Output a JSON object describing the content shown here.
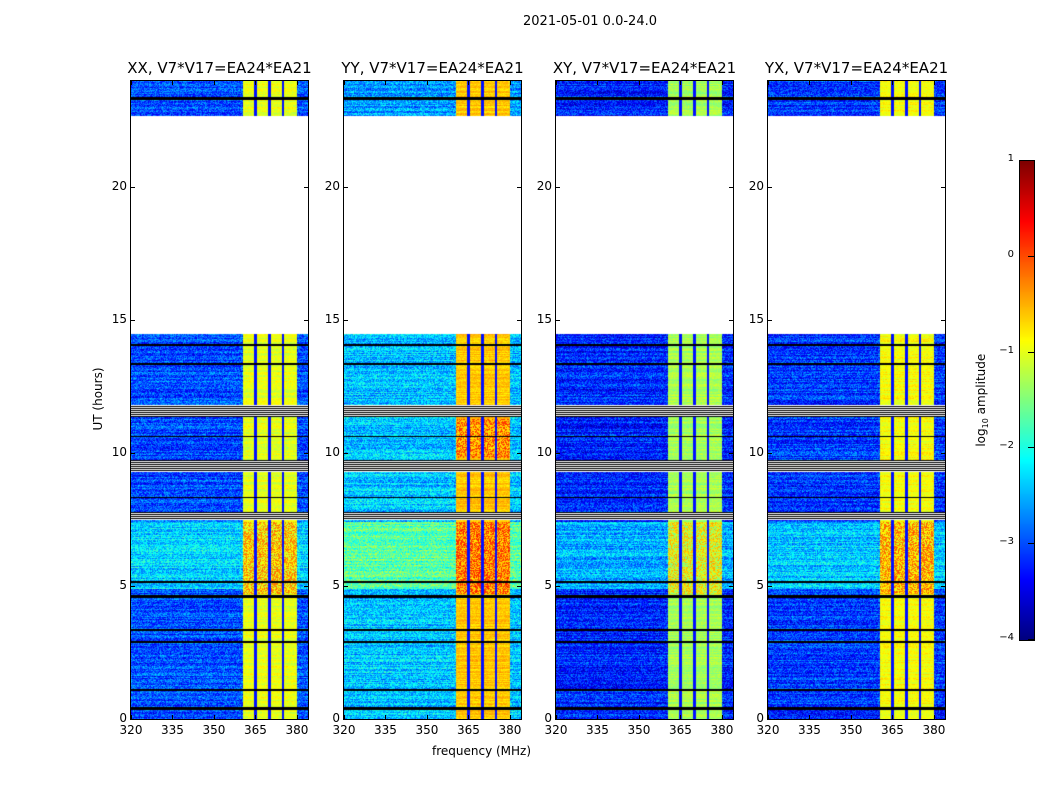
{
  "chart_data": {
    "type": "heatmap",
    "suptitle": "2021-05-01 0.0-24.0",
    "xlabel": "frequency (MHz)",
    "ylabel": "UT (hours)",
    "xlim": [
      320,
      384
    ],
    "ylim": [
      0,
      24
    ],
    "xticks": [
      "320",
      "335",
      "350",
      "365",
      "380"
    ],
    "xtick_values": [
      320,
      335,
      350,
      365,
      380
    ],
    "yticks": [
      "0",
      "5",
      "10",
      "15",
      "20"
    ],
    "ytick_values": [
      0,
      5,
      10,
      15,
      20
    ],
    "data_time_ranges_hours": [
      [
        0,
        14.5
      ],
      [
        22.7,
        24
      ]
    ],
    "bright_band_mhz": [
      360.5,
      380
    ],
    "spw_boundaries_mhz": [
      365,
      370,
      375
    ],
    "flagged_rows_hours": [
      [
        0.35,
        0.45
      ],
      [
        1.05,
        1.12
      ],
      [
        2.85,
        2.95
      ],
      [
        3.3,
        3.38
      ],
      [
        4.55,
        4.65
      ],
      [
        5.1,
        5.2
      ],
      [
        7.5,
        7.8
      ],
      [
        8.3,
        8.35
      ],
      [
        9.3,
        9.75
      ],
      [
        10.6,
        10.65
      ],
      [
        11.35,
        11.8
      ],
      [
        13.3,
        13.38
      ],
      [
        14.05,
        14.12
      ],
      [
        23.3,
        23.4
      ]
    ],
    "panels": [
      {
        "title": "XX, V7*V17=EA24*EA21",
        "background_level": -3.0,
        "band_level": -1.0,
        "hot_level": -0.3
      },
      {
        "title": "YY, V7*V17=EA24*EA21",
        "background_level": -2.6,
        "band_level": -0.6,
        "hot_level": 0.1
      },
      {
        "title": "XY, V7*V17=EA24*EA21",
        "background_level": -3.2,
        "band_level": -1.3,
        "hot_level": -0.6
      },
      {
        "title": "YX, V7*V17=EA24*EA21",
        "background_level": -3.1,
        "band_level": -0.9,
        "hot_level": -0.2
      }
    ],
    "colorbar": {
      "label": "log10 amplitude",
      "label_main": "log",
      "label_sub": "10",
      "label_rest": " amplitude",
      "range": [
        -4,
        1
      ],
      "ticks": [
        "1",
        "0",
        "−1",
        "−2",
        "−3",
        "−4"
      ],
      "tick_values": [
        1,
        0,
        -1,
        -2,
        -3,
        -4
      ],
      "colormap": "jet"
    }
  }
}
